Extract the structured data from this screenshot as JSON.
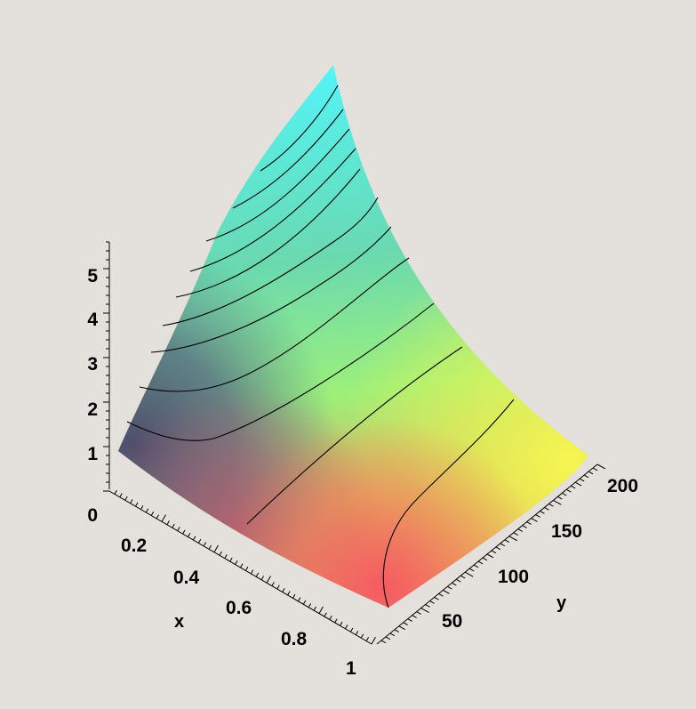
{
  "chart_data": {
    "type": "surface3d",
    "colors": {
      "background": "#e4e1dc",
      "surface_top_left": "#53f4f8",
      "surface_left": "#55687f",
      "surface_middle": "#9cf07a",
      "surface_right": "#f6f651",
      "surface_bottom": "#f55b62",
      "contour": "#000000"
    },
    "axes": {
      "x": {
        "label": "x",
        "range": [
          0,
          1
        ],
        "ticks": [
          "0.2",
          "0.4",
          "0.6",
          "0.8",
          "1"
        ]
      },
      "y": {
        "label": "y",
        "range": [
          0,
          200
        ],
        "ticks": [
          "50",
          "100",
          "150",
          "200"
        ]
      },
      "z": {
        "label": "",
        "range": [
          0,
          5.6
        ],
        "ticks": [
          "0",
          "1",
          "2",
          "3",
          "4",
          "5"
        ]
      }
    },
    "contours": {
      "count": 11,
      "shown": true
    },
    "grid": false,
    "legend": false
  }
}
